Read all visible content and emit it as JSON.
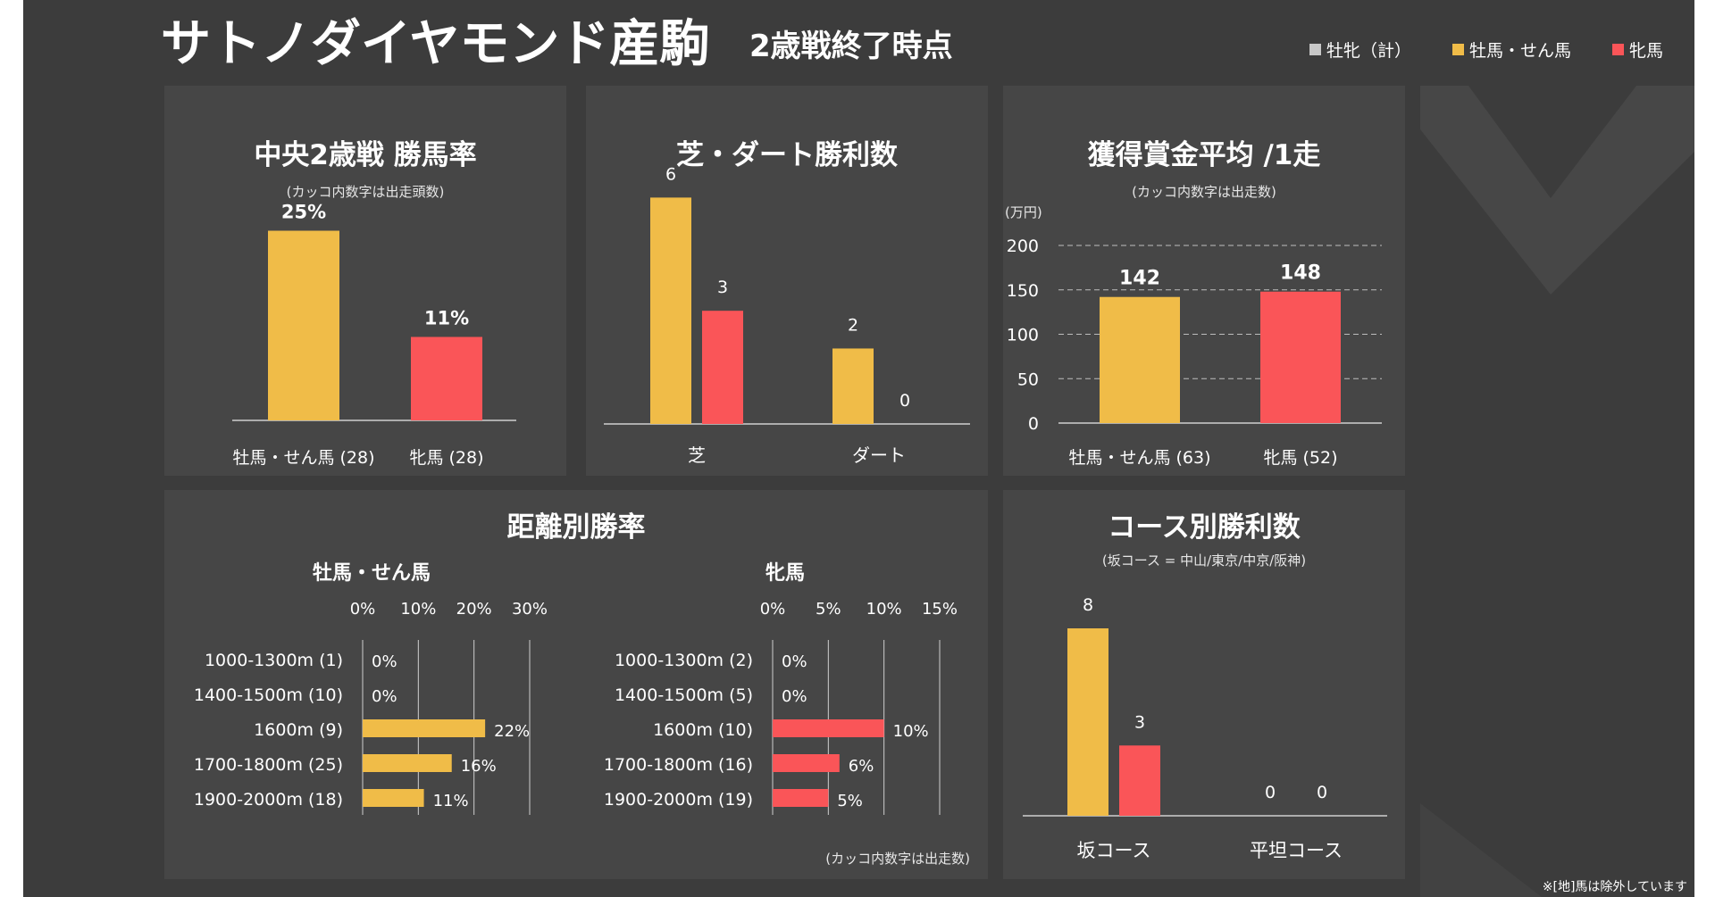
{
  "header": {
    "title": "サトノダイヤモンド産駒",
    "subtitle": "2歳戦終了時点",
    "legend": [
      {
        "label": "牡牝（計）",
        "color": "#c8c8c8"
      },
      {
        "label": "牡馬・せん馬",
        "color": "#f0bc48"
      },
      {
        "label": "牝馬",
        "color": "#fa5558"
      }
    ]
  },
  "colors": {
    "male": "#f0bc48",
    "female": "#fa5558",
    "panel": "#464646",
    "background": "#3c3c3c"
  },
  "footnote": "※[地]馬は除外しています",
  "chart_data": [
    {
      "id": "win-rate",
      "type": "bar",
      "title": "中央2歳戦 勝馬率",
      "subtitle": "(カッコ内数字は出走頭数)",
      "categories": [
        "牡馬・せん馬 (28)",
        "牝馬 (28)"
      ],
      "values": [
        25,
        11
      ],
      "value_labels": [
        "25%",
        "11%"
      ],
      "ylim": [
        0,
        30
      ],
      "grid": false
    },
    {
      "id": "turf-dirt",
      "type": "bar",
      "title": "芝・ダート勝利数",
      "categories": [
        "芝",
        "ダート"
      ],
      "series": [
        {
          "values": [
            6,
            2
          ],
          "color": "#f0bc48"
        },
        {
          "values": [
            3,
            0
          ],
          "color": "#fa5558"
        }
      ],
      "value_labels": [
        [
          "6",
          "2"
        ],
        [
          "3",
          "0"
        ]
      ],
      "ylim": [
        0,
        6.6
      ],
      "grid": false
    },
    {
      "id": "prize",
      "type": "bar",
      "title": "獲得賞金平均 /1走",
      "subtitle": "(カッコ内数字は出走数)",
      "ylabel": "(万円)",
      "categories": [
        "牡馬・せん馬 (63)",
        "牝馬 (52)"
      ],
      "values": [
        142,
        148
      ],
      "value_labels": [
        "142",
        "148"
      ],
      "yticks": [
        "0",
        "50",
        "100",
        "150",
        "200"
      ],
      "ylim": [
        0,
        200
      ],
      "grid": true
    },
    {
      "id": "distance",
      "type": "bar",
      "orientation": "horizontal",
      "title": "距離別勝率",
      "note": "(カッコ内数字は出走数)",
      "groups": [
        {
          "name": "牡馬・せん馬",
          "color": "#f0bc48",
          "categories": [
            "1000-1300m (1)",
            "1400-1500m (10)",
            "1600m (9)",
            "1700-1800m (25)",
            "1900-2000m (18)"
          ],
          "values": [
            0,
            0,
            22,
            16,
            11
          ],
          "value_labels": [
            "0%",
            "0%",
            "22%",
            "16%",
            "11%"
          ],
          "xticks": [
            "0%",
            "10%",
            "20%",
            "30%"
          ],
          "xlim": [
            0,
            30
          ]
        },
        {
          "name": "牝馬",
          "color": "#fa5558",
          "categories": [
            "1000-1300m (2)",
            "1400-1500m (5)",
            "1600m (10)",
            "1700-1800m (16)",
            "1900-2000m (19)"
          ],
          "values": [
            0,
            0,
            10,
            6,
            5
          ],
          "value_labels": [
            "0%",
            "0%",
            "10%",
            "6%",
            "5%"
          ],
          "xticks": [
            "0%",
            "5%",
            "10%",
            "15%"
          ],
          "xlim": [
            0,
            15
          ]
        }
      ]
    },
    {
      "id": "course",
      "type": "bar",
      "title": "コース別勝利数",
      "subtitle": "(坂コース = 中山/東京/中京/阪神)",
      "categories": [
        "坂コース",
        "平坦コース"
      ],
      "series": [
        {
          "values": [
            8,
            0
          ],
          "color": "#f0bc48"
        },
        {
          "values": [
            3,
            0
          ],
          "color": "#fa5558"
        }
      ],
      "value_labels": [
        [
          "8",
          "0"
        ],
        [
          "3",
          "0"
        ]
      ],
      "ylim": [
        0,
        8.8
      ],
      "grid": false
    }
  ]
}
